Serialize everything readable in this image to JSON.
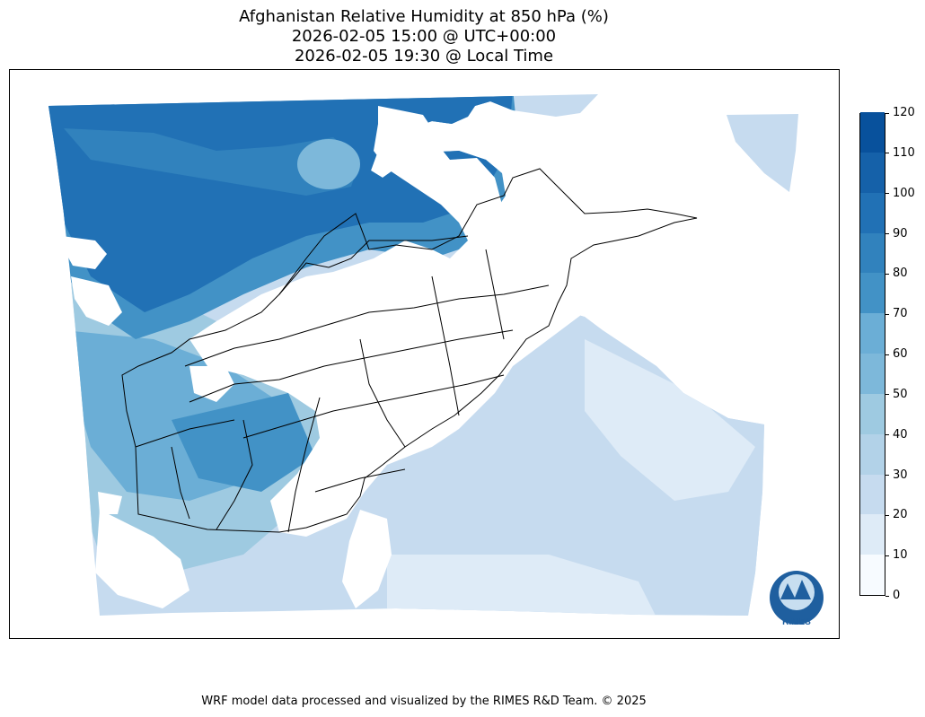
{
  "title": {
    "line1": "Afghanistan Relative Humidity at 850 hPa (%)",
    "line2": "2026-02-05 15:00 @ UTC+00:00",
    "line3": "2026-02-05 19:30 @ Local Time"
  },
  "colorbar": {
    "levels": [
      0,
      10,
      20,
      30,
      40,
      50,
      60,
      70,
      80,
      90,
      100,
      110,
      120
    ],
    "labels": [
      "0",
      "10",
      "20",
      "30",
      "40",
      "50",
      "60",
      "70",
      "80",
      "90",
      "100",
      "110",
      "120"
    ],
    "colors": [
      "#f7fbff",
      "#deebf7",
      "#c6dbef",
      "#b2d2e8",
      "#9ecae1",
      "#7db8da",
      "#6baed6",
      "#4292c6",
      "#3182bd",
      "#2171b5",
      "#1561a9",
      "#08519c",
      "#08306b"
    ]
  },
  "map": {
    "variable": "Relative Humidity at 850 hPa",
    "unit": "%",
    "style": {
      "boundary_color": "#000000",
      "missing_color": "#ffffff"
    }
  },
  "logo": {
    "text": "RIMES",
    "ring_text": "Regional Integrated Multi-Hazard Early Warning System"
  },
  "footer": {
    "credit": "WRF model data processed and visualized by the RIMES R&D Team. © 2025"
  }
}
